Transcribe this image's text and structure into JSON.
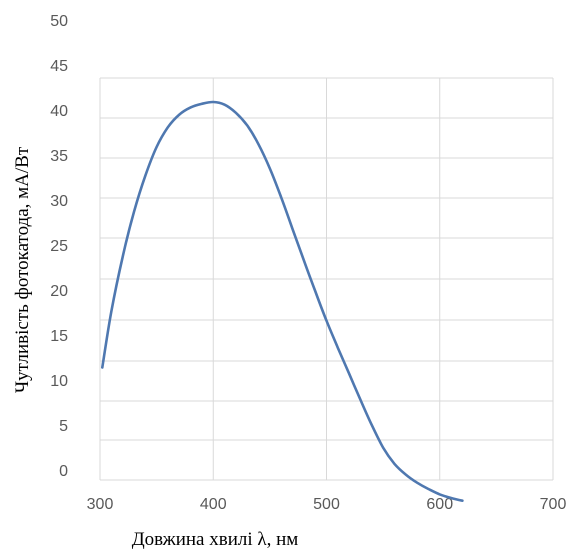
{
  "chart_data": {
    "type": "line",
    "xlabel": "Довжина хвилі λ, нм",
    "ylabel": "Чутливість фотокатода, мА/Вт",
    "xlim": [
      300,
      700
    ],
    "ylim": [
      0,
      50
    ],
    "x_ticks": [
      "300",
      "400",
      "500",
      "600",
      "700"
    ],
    "y_ticks": [
      "0",
      "5",
      "10",
      "15",
      "20",
      "25",
      "30",
      "35",
      "40",
      "45",
      "50"
    ],
    "grid": true,
    "series": [
      {
        "color": "#4f78b0",
        "x": [
          302,
          310,
          320,
          330,
          340,
          350,
          360,
          370,
          380,
          390,
          400,
          410,
          420,
          430,
          440,
          450,
          460,
          470,
          480,
          490,
          500,
          510,
          520,
          530,
          540,
          550,
          560,
          570,
          580,
          590,
          600,
          610,
          620
        ],
        "y": [
          12.5,
          18.7,
          24.8,
          29.8,
          33.8,
          37.0,
          39.2,
          40.6,
          41.4,
          41.8,
          42.0,
          41.7,
          40.8,
          39.4,
          37.3,
          34.6,
          31.4,
          27.9,
          24.4,
          21.0,
          17.7,
          14.7,
          11.8,
          8.9,
          6.1,
          3.6,
          1.8,
          0.6,
          -0.3,
          -1.0,
          -1.6,
          -2.0,
          -2.3
        ]
      }
    ]
  }
}
